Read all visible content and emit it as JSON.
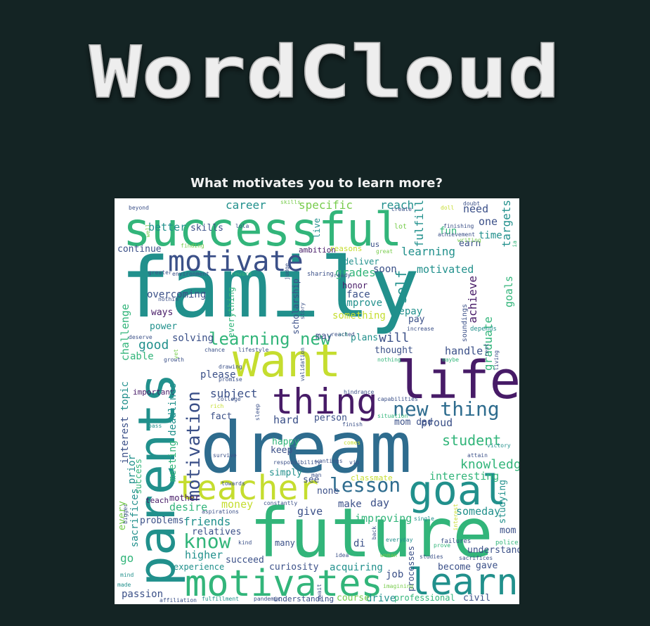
{
  "header": {
    "logo_text": "WordCloud"
  },
  "question": "What motivates you to learn more?",
  "palette": {
    "background": "#142424",
    "purple": "#471b67",
    "indigo": "#3b5088",
    "blue": "#2e6c8e",
    "teal": "#21908c",
    "green": "#32b57a",
    "lime": "#78cc4d",
    "yellow": "#c5dd2f"
  },
  "words": [
    "family",
    "dream",
    "future",
    "successful",
    "want",
    "life",
    "parents",
    "teacher",
    "goal",
    "motivates",
    "learn",
    "thing",
    "motivate",
    "new thing",
    "lesson",
    "know",
    "motivation",
    "learning new",
    "student",
    "knowledge",
    "better",
    "skills",
    "career",
    "specific",
    "reach",
    "need",
    "one",
    "time",
    "fulfill",
    "goals",
    "targets",
    "continue",
    "ambition",
    "reasons",
    "learning",
    "motivated",
    "grades",
    "self",
    "honor",
    "face",
    "improve",
    "achieve",
    "graduate",
    "overcoming",
    "ways",
    "power",
    "challenge",
    "good",
    "able",
    "solving",
    "everything",
    "scholarship",
    "something",
    "repay",
    "pay",
    "will",
    "plans",
    "thought",
    "handle",
    "please",
    "subject",
    "important",
    "topic",
    "interest",
    "prior",
    "success",
    "deadlines",
    "meeting",
    "every",
    "fact",
    "hard",
    "mom dad",
    "proud",
    "happy",
    "keep",
    "simply",
    "person",
    "interesting",
    "classmate",
    "someday",
    "day",
    "money",
    "make",
    "give",
    "desire",
    "mother",
    "teach",
    "problems",
    "friends",
    "relatives",
    "sacrifices",
    "higher",
    "go",
    "experience",
    "succeed",
    "curiosity",
    "acquiring",
    "job",
    "improving",
    "studying",
    "mom",
    "understand",
    "gave",
    "become",
    "civil",
    "professional",
    "drive",
    "course",
    "understanding",
    "passion",
    "affiliation",
    "fulfillment",
    "pandemic",
    "mind",
    "made",
    "kind",
    "many",
    "di",
    "processes",
    "failures",
    "police",
    "prove",
    "beyond",
    "lola",
    "live",
    "us",
    "soon",
    "deliver",
    "lot",
    "fun",
    "earn",
    "create",
    "finishing",
    "achievement",
    "doubt",
    "skills",
    "doll",
    "great",
    "sharing",
    "judge",
    "reward",
    "environment",
    "greater",
    "nothin",
    "lifestyle",
    "chance",
    "yet",
    "validation",
    "nothing",
    "growth",
    "maybe",
    "living",
    "rest",
    "soundings",
    "depends",
    "increase",
    "deserve",
    "drawing",
    "promise",
    "college",
    "rich",
    "hindrance",
    "capabilities",
    "sleep",
    "finish",
    "situation",
    "comes",
    "survive",
    "attain",
    "responsibility",
    "wantings",
    "man",
    "towards",
    "constantly",
    "aspirations",
    "bigger",
    "single",
    "interest",
    "everyday",
    "back",
    "studies",
    "idea",
    "await",
    "woman",
    "imagining",
    "writing",
    "vip",
    "well",
    "story",
    "ready",
    "act",
    "reached",
    "victory",
    "pass",
    "may",
    "see",
    "none",
    "finding",
    "ia",
    "sacrifices",
    "successful",
    "situation"
  ]
}
